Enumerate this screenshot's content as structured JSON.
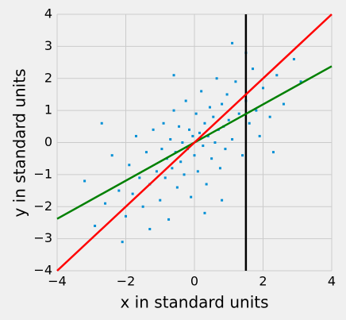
{
  "chart_data": {
    "type": "scatter",
    "xlabel": "x in standard units",
    "ylabel": "y in standard units",
    "xlim": [
      -4,
      4
    ],
    "ylim": [
      -4,
      4
    ],
    "xticks": [
      {
        "value": -4,
        "label": "−4"
      },
      {
        "value": -2,
        "label": "−2"
      },
      0,
      2,
      4
    ],
    "yticks": [
      {
        "value": -4,
        "label": "−4"
      },
      {
        "value": -3,
        "label": "−3"
      },
      {
        "value": -2,
        "label": "−2"
      },
      {
        "value": -1,
        "label": "−1"
      },
      0,
      1,
      2,
      3,
      4
    ],
    "grid": true,
    "points": {
      "color": "#008fd5",
      "x": [
        -3.2,
        -2.9,
        -2.6,
        -2.4,
        -2.2,
        -2.0,
        -1.9,
        -1.8,
        -1.7,
        -1.6,
        -1.5,
        -1.4,
        -1.3,
        -1.2,
        -1.1,
        -1.0,
        -0.95,
        -0.9,
        -0.85,
        -0.8,
        -0.75,
        -0.7,
        -0.65,
        -0.6,
        -0.55,
        -0.5,
        -0.45,
        -0.4,
        -0.35,
        -0.3,
        -0.25,
        -0.2,
        -0.15,
        -0.1,
        -0.05,
        0.0,
        0.05,
        0.1,
        0.15,
        0.2,
        0.25,
        0.3,
        0.35,
        0.4,
        0.45,
        0.5,
        0.55,
        0.6,
        0.65,
        0.7,
        0.75,
        0.8,
        0.85,
        0.9,
        0.95,
        1.0,
        1.1,
        1.2,
        1.3,
        1.4,
        1.5,
        1.6,
        1.7,
        1.8,
        1.9,
        2.0,
        2.2,
        2.4,
        2.6,
        2.9,
        3.1,
        -2.1,
        -1.3,
        0.3,
        1.1,
        -0.6,
        2.3,
        -2.7,
        0.8,
        1.5
      ],
      "values": [
        -1.2,
        -2.6,
        -1.9,
        -0.4,
        -1.5,
        -2.3,
        -0.7,
        -1.6,
        0.2,
        -1.1,
        -2.0,
        -0.3,
        -1.3,
        0.4,
        -0.9,
        -1.8,
        -0.2,
        0.6,
        -1.1,
        -0.5,
        -2.4,
        0.1,
        -0.8,
        1.0,
        -0.3,
        -1.4,
        0.5,
        -0.6,
        0.0,
        -1.0,
        1.3,
        -0.2,
        0.4,
        -1.7,
        0.2,
        -0.4,
        0.9,
        -0.9,
        0.3,
        1.6,
        -0.1,
        0.6,
        -1.3,
        0.2,
        1.1,
        -0.5,
        0.8,
        0.0,
        2.0,
        0.4,
        -0.8,
        1.2,
        0.5,
        -0.2,
        1.5,
        0.7,
        0.1,
        1.9,
        0.9,
        -0.4,
        1.3,
        0.6,
        2.3,
        1.0,
        0.2,
        1.7,
        0.8,
        2.1,
        1.2,
        2.6,
        1.9,
        -3.1,
        -2.7,
        -2.2,
        3.1,
        2.1,
        -0.3,
        0.6,
        -1.8,
        2.8
      ]
    },
    "lines": [
      {
        "color": "#000000",
        "x": [
          1.5,
          1.5
        ],
        "values": [
          -4,
          4
        ]
      },
      {
        "color": "#008000",
        "x": [
          -4,
          4
        ],
        "values": [
          -2.38,
          2.38
        ]
      },
      {
        "color": "#ff0000",
        "x": [
          -4,
          4
        ],
        "values": [
          -4,
          4
        ]
      }
    ]
  }
}
